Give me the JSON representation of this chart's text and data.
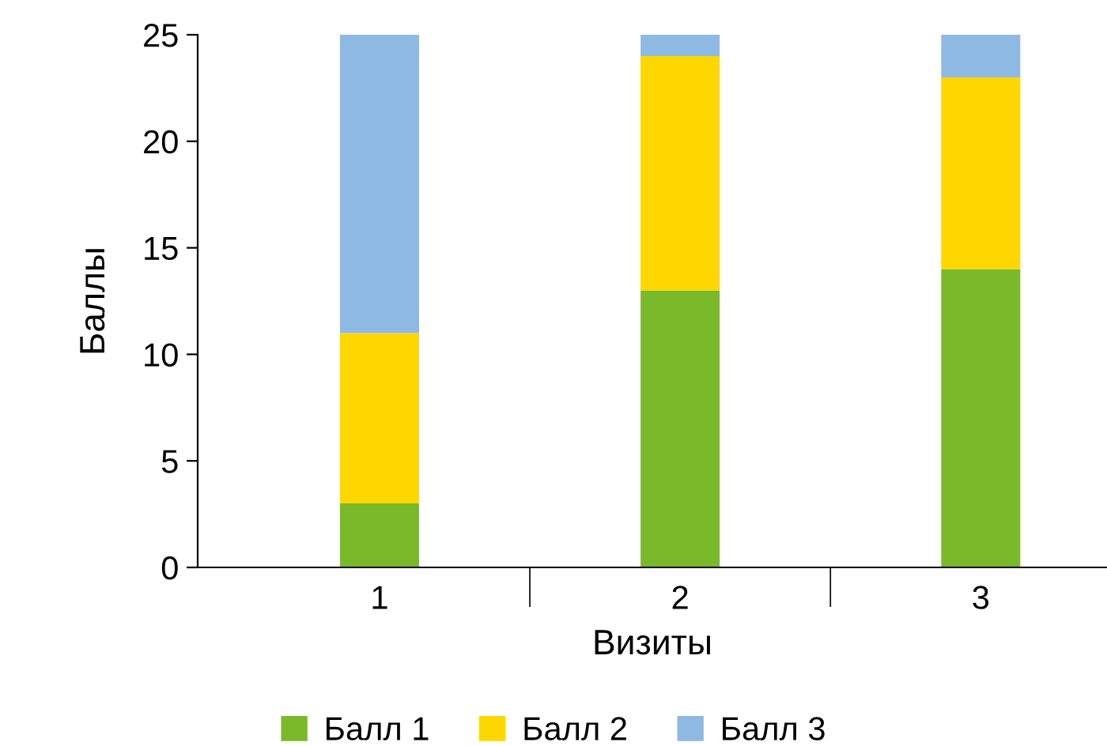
{
  "chart_data": {
    "type": "bar",
    "stacked": true,
    "xlabel": "Визиты",
    "ylabel": "Баллы",
    "categories": [
      "1",
      "2",
      "3"
    ],
    "series": [
      {
        "name": "Балл 1",
        "color": "#7ab929",
        "values": [
          3,
          13,
          14
        ]
      },
      {
        "name": "Балл 2",
        "color": "#ffd700",
        "values": [
          8,
          11,
          9
        ]
      },
      {
        "name": "Балл 3",
        "color": "#8db9e3",
        "values": [
          14,
          1,
          2
        ]
      }
    ],
    "ylim": [
      0,
      25
    ],
    "yticks": [
      0,
      5,
      10,
      15,
      20,
      25
    ],
    "grid": false,
    "legend": "bottom"
  }
}
